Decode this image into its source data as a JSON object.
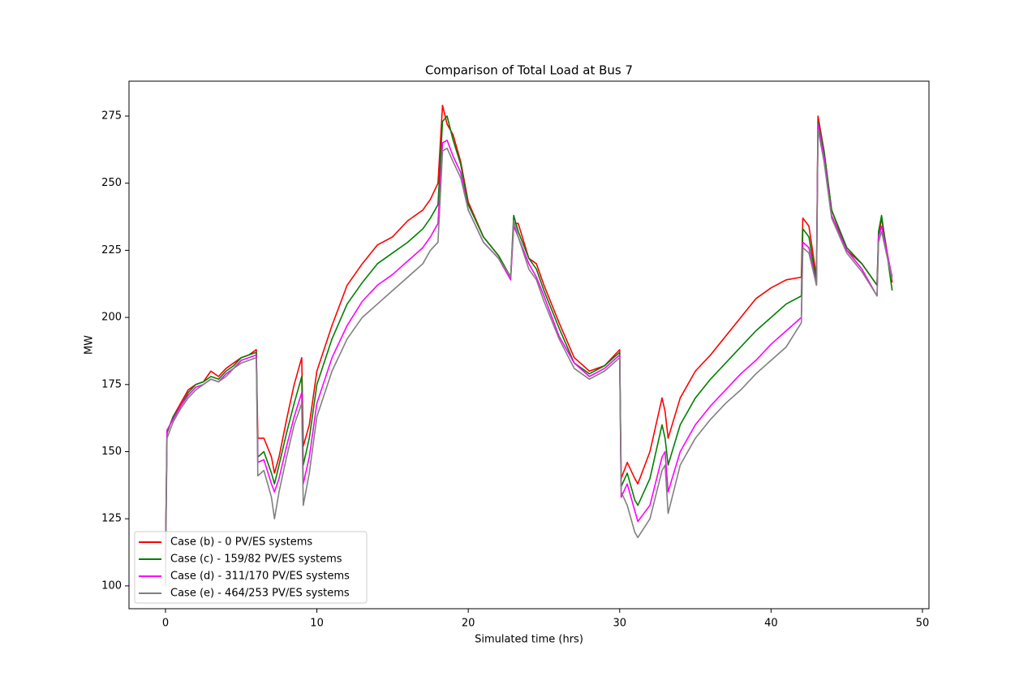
{
  "chart_data": {
    "type": "line",
    "title": "Comparison of Total Load at Bus 7",
    "x_label": "Simulated time (hrs)",
    "y_label": "MW",
    "x": [
      0,
      0.1,
      0.5,
      1,
      1.5,
      2,
      2.5,
      3,
      3.5,
      4,
      4.5,
      5,
      5.5,
      6,
      6.1,
      6.5,
      7,
      7.2,
      7.5,
      8,
      8.5,
      9,
      9.1,
      9.5,
      10,
      11,
      12,
      13,
      14,
      15,
      16,
      17,
      17.5,
      18,
      18.3,
      18.6,
      19,
      19.5,
      20,
      21,
      22,
      22.8,
      23,
      23.3,
      24,
      24.5,
      25,
      26,
      27,
      28,
      29,
      30,
      30.1,
      30.5,
      31,
      31.2,
      32,
      32.8,
      33,
      33.2,
      34,
      35,
      36,
      37,
      38,
      39,
      40,
      41,
      42,
      42.1,
      42.5,
      43,
      43.1,
      43.5,
      44,
      45,
      46,
      47,
      47.1,
      47.3,
      48
    ],
    "series": [
      {
        "name": "Case (b) - 0 PV/ES systems",
        "color": "#ff0000",
        "values": [
          110,
          157,
          163,
          168,
          173,
          175,
          176,
          180,
          178,
          181,
          183,
          185,
          186,
          188,
          155,
          155,
          148,
          142,
          148,
          162,
          175,
          185,
          152,
          160,
          180,
          197,
          212,
          220,
          227,
          230,
          236,
          240,
          244,
          250,
          279,
          272,
          268,
          258,
          243,
          230,
          223,
          215,
          235,
          235,
          222,
          220,
          212,
          198,
          185,
          180,
          182,
          188,
          140,
          146,
          140,
          138,
          150,
          170,
          165,
          155,
          170,
          180,
          186,
          193,
          200,
          207,
          211,
          214,
          215,
          237,
          234,
          215,
          275,
          262,
          240,
          225,
          220,
          212,
          230,
          237,
          213
        ]
      },
      {
        "name": "Case (c) - 159/82 PV/ES systems",
        "color": "#008000",
        "values": [
          110,
          157,
          163,
          167,
          172,
          175,
          176,
          178,
          177,
          180,
          182,
          185,
          186,
          187,
          148,
          150,
          142,
          138,
          145,
          157,
          168,
          178,
          145,
          155,
          175,
          192,
          205,
          213,
          220,
          224,
          228,
          233,
          237,
          242,
          273,
          275,
          266,
          257,
          242,
          230,
          223,
          215,
          238,
          232,
          222,
          218,
          210,
          196,
          183,
          179,
          182,
          187,
          137,
          142,
          132,
          130,
          140,
          160,
          155,
          145,
          160,
          170,
          177,
          183,
          189,
          195,
          200,
          205,
          208,
          233,
          230,
          213,
          273,
          262,
          240,
          226,
          220,
          212,
          232,
          238,
          210
        ]
      },
      {
        "name": "Case (d) - 311/170 PV/ES systems",
        "color": "#ff00ff",
        "values": [
          110,
          158,
          162,
          167,
          171,
          174,
          175,
          177,
          176,
          179,
          181,
          184,
          185,
          186,
          146,
          147,
          138,
          135,
          140,
          152,
          163,
          172,
          138,
          148,
          168,
          185,
          197,
          206,
          212,
          216,
          221,
          226,
          230,
          235,
          265,
          266,
          260,
          254,
          240,
          228,
          222,
          214,
          234,
          230,
          220,
          215,
          208,
          193,
          183,
          178,
          181,
          186,
          133,
          138,
          128,
          124,
          130,
          148,
          150,
          135,
          150,
          160,
          167,
          173,
          179,
          184,
          190,
          195,
          200,
          228,
          226,
          212,
          272,
          260,
          238,
          225,
          218,
          208,
          230,
          234,
          215
        ]
      },
      {
        "name": "Case (e) - 464/253 PV/ES systems",
        "color": "#808080",
        "values": [
          100,
          155,
          161,
          166,
          170,
          173,
          175,
          177,
          176,
          178,
          181,
          183,
          184,
          185,
          141,
          143,
          133,
          125,
          135,
          148,
          160,
          168,
          130,
          142,
          163,
          180,
          192,
          200,
          205,
          210,
          215,
          220,
          225,
          228,
          262,
          263,
          258,
          252,
          240,
          228,
          222,
          215,
          236,
          230,
          218,
          214,
          206,
          192,
          181,
          177,
          180,
          185,
          135,
          130,
          120,
          118,
          125,
          143,
          145,
          127,
          145,
          155,
          162,
          168,
          173,
          179,
          184,
          189,
          198,
          226,
          224,
          212,
          270,
          258,
          237,
          224,
          217,
          208,
          228,
          232,
          214
        ]
      }
    ],
    "xlim": [
      -2.41,
      50.43
    ],
    "xticks": [
      0,
      10,
      20,
      30,
      40,
      50
    ],
    "ylim": [
      91.5,
      288
    ],
    "yticks": [
      100,
      125,
      150,
      175,
      200,
      225,
      250,
      275
    ],
    "legend": "lower left"
  }
}
